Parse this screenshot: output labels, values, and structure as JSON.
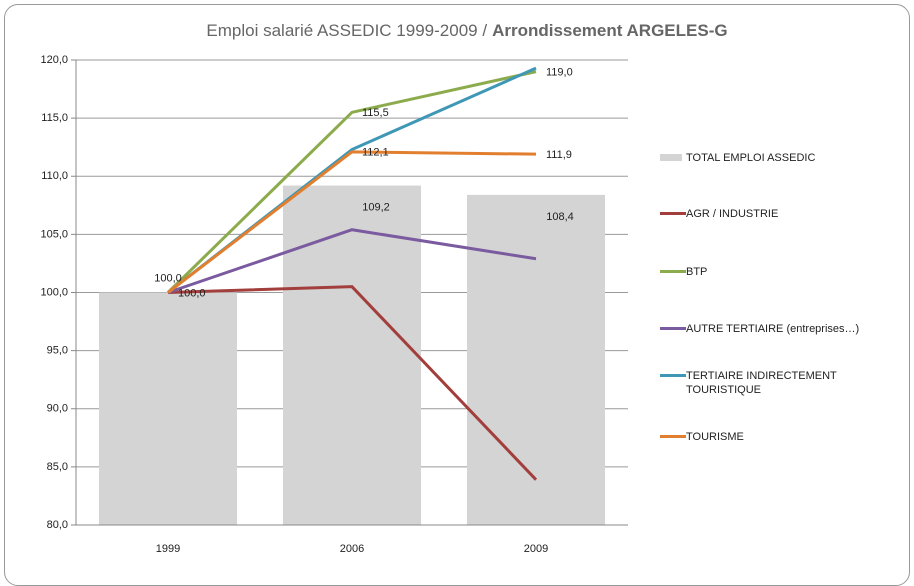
{
  "chart_data": {
    "type": "bar-line",
    "title_parts": [
      "Emploi salarié ASSEDIC 1999-2009 /",
      "Arrondissement ARGELES-G"
    ],
    "categories": [
      "1999",
      "2006",
      "2009"
    ],
    "ylim": [
      80,
      120
    ],
    "yticks": [
      {
        "value": 80,
        "label": "80,0"
      },
      {
        "value": 85,
        "label": "85,0"
      },
      {
        "value": 90,
        "label": "90,0"
      },
      {
        "value": 95,
        "label": "95,0"
      },
      {
        "value": 100,
        "label": "100,0"
      },
      {
        "value": 105,
        "label": "105,0"
      },
      {
        "value": 110,
        "label": "110,0"
      },
      {
        "value": 115,
        "label": "115,0"
      },
      {
        "value": 120,
        "label": "120,0"
      }
    ],
    "grid": true,
    "legend": "right",
    "series": [
      {
        "name": "TOTAL EMPLOI ASSEDIC",
        "type": "bar",
        "color": "#d4d4d4",
        "values": [
          100,
          109.2,
          108.4
        ],
        "value_labels": [
          "100,0",
          "109,2",
          "108,4"
        ]
      },
      {
        "name": "AGR / INDUSTRIE",
        "type": "line",
        "color": "#a23e3b",
        "values": [
          100,
          100.5,
          83.9
        ]
      },
      {
        "name": "BTP",
        "type": "line",
        "color": "#8cab4c",
        "values": [
          100,
          115.5,
          119.0
        ],
        "value_labels": [
          null,
          "115,5",
          "119,0"
        ]
      },
      {
        "name": "AUTRE TERTIAIRE (entreprises…)",
        "type": "line",
        "color": "#7b5ba0",
        "values": [
          100,
          105.4,
          102.9
        ]
      },
      {
        "name": "TERTIAIRE INDIRECTEMENT TOURISTIQUE",
        "type": "line",
        "color": "#3f97b6",
        "values": [
          100,
          112.3,
          119.3
        ]
      },
      {
        "name": "TOURISME",
        "type": "line",
        "color": "#e27f2f",
        "values": [
          100,
          112.1,
          111.9
        ],
        "value_labels": [
          "100,0",
          "112,1",
          "111,9"
        ]
      }
    ]
  }
}
